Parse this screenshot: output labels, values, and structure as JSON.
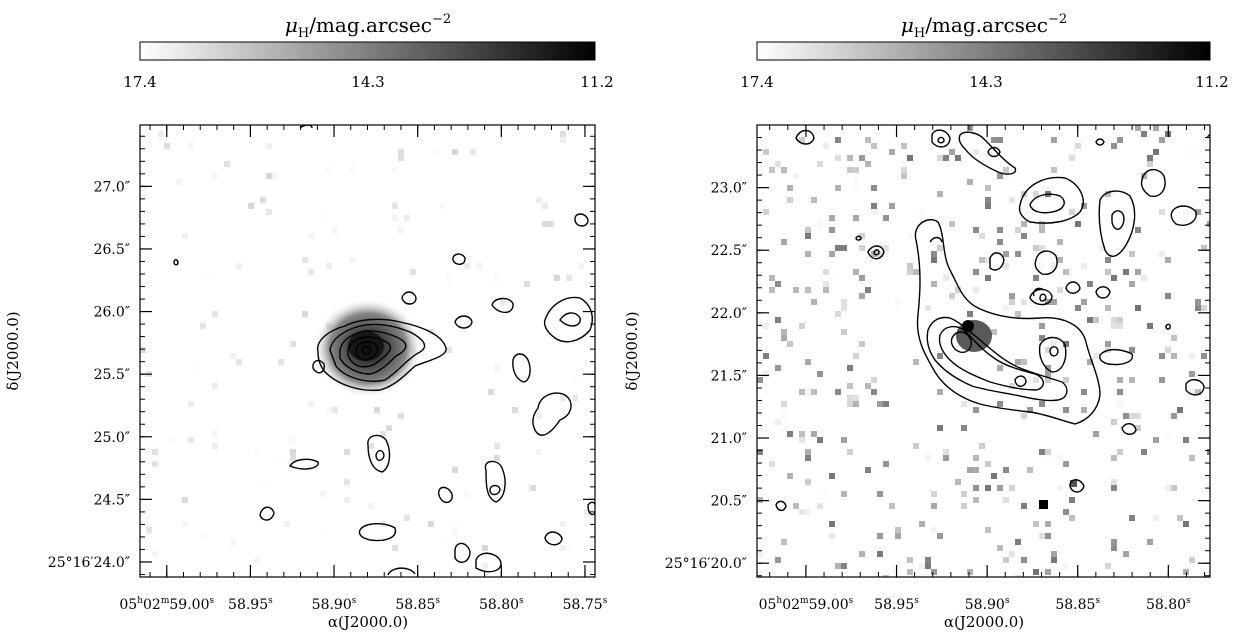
{
  "colorbar": {
    "title_main": "μ",
    "title_sub": "H",
    "title_rest": "/mag.arcsec",
    "title_exp": "−2",
    "tick_left": "17.4",
    "tick_mid": "14.3",
    "tick_right": "11.2"
  },
  "chart_data": [
    {
      "type": "contour-image",
      "xlabel": "α(J2000.0)",
      "ylabel": "δ(J2000.0)",
      "xticks": [
        "05h02m59.00s",
        "58.95s",
        "58.90s",
        "58.85s",
        "58.80s",
        "58.75s"
      ],
      "xtick_values_s": [
        59.0,
        58.95,
        58.9,
        58.85,
        58.8,
        58.75
      ],
      "yticks": [
        "25°16′24.0″",
        "24.5″",
        "25.0″",
        "25.5″",
        "26.0″",
        "26.5″",
        "27.0″"
      ],
      "ytick_values_arcsec": [
        24.0,
        24.5,
        25.0,
        25.5,
        26.0,
        26.5,
        27.0
      ],
      "xlim_s": [
        59.016,
        58.744
      ],
      "ylim_arcsec": [
        23.88,
        27.49
      ],
      "peak": {
        "ra_s": 58.879,
        "dec_arcsec": 25.61
      }
    },
    {
      "type": "contour-image",
      "xlabel": "α(J2000.0)",
      "ylabel": "δ(J2000.0)",
      "xticks": [
        "05h02m59.00s",
        "58.95s",
        "58.90s",
        "58.85s",
        "58.80s"
      ],
      "xtick_values_s": [
        59.0,
        58.95,
        58.9,
        58.85,
        58.8
      ],
      "yticks": [
        "25°16′20.0″",
        "20.5″",
        "21.0″",
        "21.5″",
        "22.0″",
        "22.5″",
        "23.0″"
      ],
      "ytick_values_arcsec": [
        20.0,
        20.5,
        21.0,
        21.5,
        22.0,
        22.5,
        23.0
      ],
      "xlim_s": [
        59.027,
        58.777
      ],
      "ylim_arcsec": [
        19.89,
        23.5
      ],
      "peak": {
        "ra_s": 58.898,
        "dec_arcsec": 21.79
      }
    }
  ]
}
